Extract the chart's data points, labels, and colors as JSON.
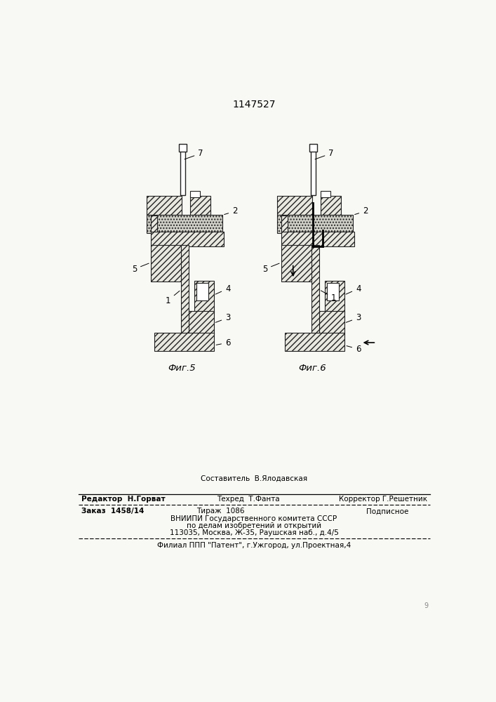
{
  "title": "1147527",
  "fig_width": 7.07,
  "fig_height": 10.0,
  "bg_color": "#f8f8f4",
  "footer_sestavitel": "Составитель  В.Ялодавская",
  "footer_redaktor": "Редактор  Н.Горват",
  "footer_tehred": "Техред  Т.Фанта",
  "footer_korrektor": "Корректор Г.Решетник",
  "footer_zakaz": "Заказ  1458/14",
  "footer_tirazh": "Тираж  1086",
  "footer_podpisnoe": "Подписное",
  "footer_vniipи": "ВНИИПИ Государственного комитета СССР",
  "footer_po_delam": "по делам изобретений и открытий",
  "footer_address": "113035, Москва, Ж-35, Раушская наб., д.4/5",
  "footer_filial": "Филиал ППП \"Патент\", г.Ужгород, ул.Проектная,4",
  "fig5_label": "Фиг.5",
  "fig6_label": "Фиг.6",
  "fc_diag": "#e8e8e0",
  "fc_cross": "#d0d0c8",
  "fc_white": "#ffffff",
  "ec": "#222222"
}
